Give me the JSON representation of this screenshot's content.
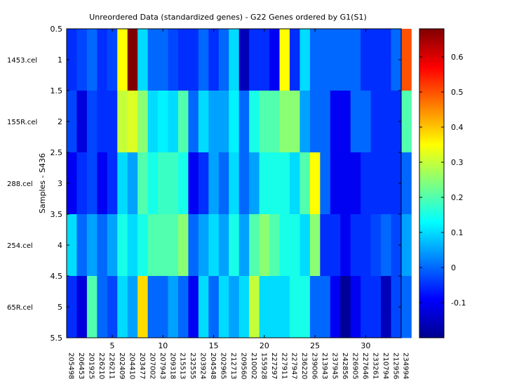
{
  "chart_data": {
    "type": "heatmap",
    "title": "Unreordered Data (standardized genes) - G22 Genes ordered by G1(S1)",
    "ylabel": "Samples - S436",
    "xlabel": "",
    "colormap": "jet",
    "x_range": [
      0.5,
      33.5
    ],
    "y_range": [
      0.5,
      5.5
    ],
    "x_ticks": [
      5,
      10,
      15,
      20,
      25,
      30
    ],
    "y_ticks": [
      0.5,
      1,
      1.5,
      2,
      2.5,
      3,
      3.5,
      4,
      4.5,
      5,
      5.5
    ],
    "row_labels": [
      "1453.cel",
      "155R.cel",
      "288.cel",
      "254.cel",
      "65R.cel"
    ],
    "gene_labels": [
      "205498_",
      "206453_",
      "201925_",
      "226210_",
      "226211_",
      "202409_",
      "204410_",
      "203477_",
      "207002_",
      "207943_",
      "209318_",
      "215513_",
      "232555_",
      "203924_",
      "204548_",
      "202965_",
      "212713_",
      "209560_",
      "210002_",
      "1559282_",
      "227297_",
      "227911_",
      "227947_",
      "236220_",
      "239006_",
      "213943_",
      "237945_",
      "242856_",
      "226905_",
      "227646_",
      "233261_",
      "210794_",
      "212956_",
      "234994_"
    ],
    "colorbar": {
      "min": -0.2,
      "max": 0.68,
      "ticks": [
        0.6,
        0.5,
        0.4,
        0.3,
        0.2,
        0.1,
        0,
        -0.1
      ]
    },
    "values": [
      [
        -0.05,
        -0.03,
        0.0,
        -0.05,
        -0.03,
        0.35,
        0.68,
        0.1,
        0.0,
        0.0,
        -0.03,
        -0.05,
        -0.05,
        0.0,
        -0.05,
        0.0,
        0.1,
        -0.15,
        -0.05,
        -0.05,
        -0.1,
        0.35,
        -0.05,
        0.1,
        0.0,
        0.0,
        0.0,
        0.0,
        0.0,
        -0.05,
        -0.05,
        -0.05,
        0.0,
        0.5
      ],
      [
        -0.03,
        -0.12,
        -0.03,
        -0.05,
        -0.05,
        0.3,
        0.32,
        0.25,
        0.1,
        0.12,
        0.1,
        0.2,
        0.0,
        0.1,
        0.05,
        0.05,
        0.12,
        0.0,
        0.15,
        0.2,
        0.2,
        0.25,
        0.25,
        0.05,
        0.0,
        0.0,
        -0.1,
        -0.1,
        0.0,
        0.0,
        -0.05,
        -0.05,
        -0.05,
        0.2
      ],
      [
        -0.1,
        -0.05,
        -0.03,
        -0.1,
        -0.05,
        0.1,
        0.05,
        0.2,
        0.15,
        0.18,
        0.18,
        0.15,
        -0.1,
        -0.05,
        0.05,
        0.0,
        0.1,
        0.0,
        0.05,
        0.15,
        0.15,
        0.15,
        0.1,
        0.2,
        0.35,
        0.0,
        -0.1,
        -0.1,
        -0.1,
        -0.05,
        -0.05,
        -0.05,
        -0.05,
        0.0
      ],
      [
        0.1,
        0.0,
        0.05,
        0.0,
        0.05,
        0.15,
        0.1,
        0.15,
        0.2,
        0.2,
        0.2,
        0.25,
        0.0,
        0.05,
        0.1,
        0.05,
        0.15,
        0.05,
        0.2,
        0.25,
        0.2,
        0.15,
        0.15,
        0.1,
        0.25,
        -0.05,
        -0.05,
        -0.1,
        -0.05,
        -0.05,
        -0.03,
        0.0,
        -0.03,
        0.05
      ],
      [
        -0.05,
        -0.12,
        0.2,
        0.0,
        -0.03,
        0.1,
        0.05,
        0.38,
        0.0,
        0.0,
        0.05,
        0.0,
        -0.1,
        0.1,
        0.0,
        0.1,
        0.05,
        0.1,
        0.3,
        0.1,
        0.1,
        0.1,
        0.15,
        0.15,
        0.0,
        0.0,
        -0.1,
        -0.18,
        -0.1,
        -0.05,
        -0.05,
        -0.15,
        -0.03,
        0.0
      ]
    ]
  }
}
